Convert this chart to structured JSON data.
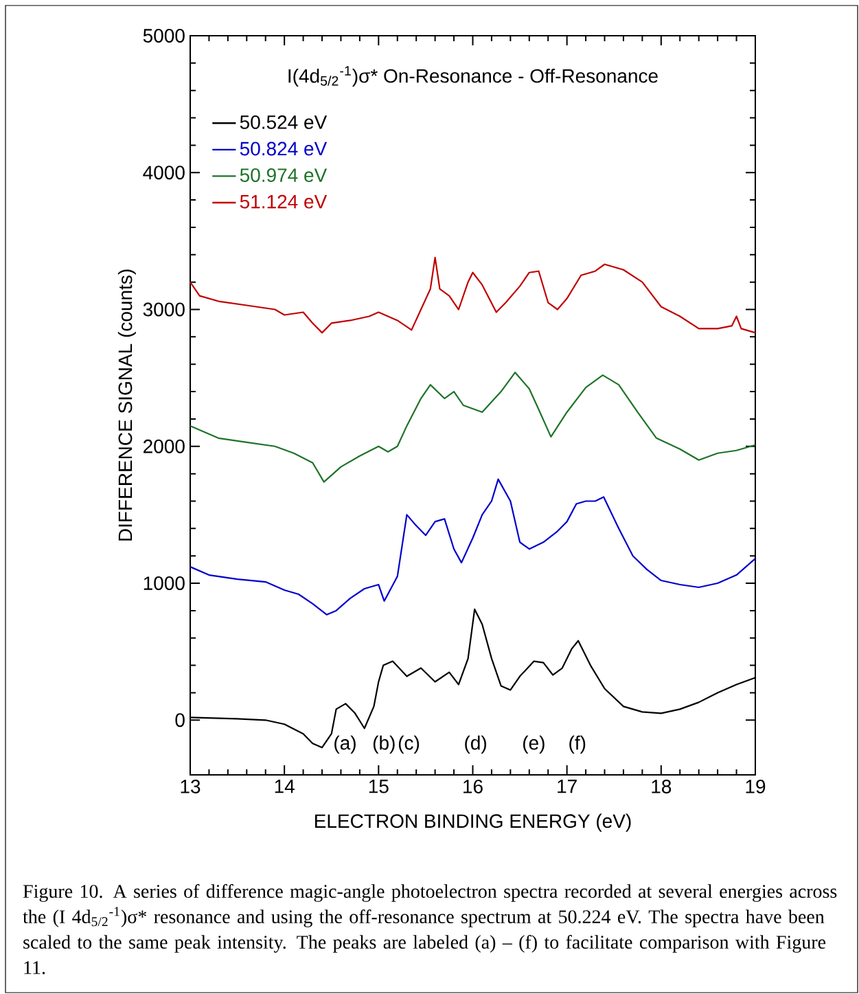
{
  "chart_data": {
    "type": "line",
    "title": "I(4d$_{5/2}$$^{-1}$)σ* On-Resonance - Off-Resonance",
    "xlabel": "ELECTRON BINDING ENERGY  (eV)",
    "ylabel": "DIFFERENCE SIGNAL  (counts)",
    "xlim": [
      13,
      19
    ],
    "xticks": [
      13,
      14,
      15,
      16,
      17,
      18,
      19
    ],
    "ylim": [
      -400,
      5000
    ],
    "yticks": [
      0,
      1000,
      2000,
      3000,
      4000,
      5000
    ],
    "legend": "top left",
    "marker": "none",
    "line_style": "solid",
    "series": [
      {
        "name": "50.524 eV",
        "color": "#000000",
        "x": [
          13.0,
          13.5,
          13.8,
          14.0,
          14.2,
          14.3,
          14.4,
          14.5,
          14.55,
          14.65,
          14.75,
          14.85,
          14.95,
          15.0,
          15.05,
          15.15,
          15.3,
          15.45,
          15.6,
          15.75,
          15.85,
          15.95,
          16.02,
          16.1,
          16.2,
          16.3,
          16.4,
          16.5,
          16.65,
          16.75,
          16.85,
          16.95,
          17.05,
          17.12,
          17.25,
          17.4,
          17.6,
          17.8,
          18.0,
          18.2,
          18.4,
          18.6,
          18.8,
          19.0
        ],
        "values": [
          20,
          10,
          0,
          -30,
          -100,
          -170,
          -200,
          -100,
          80,
          120,
          50,
          -60,
          100,
          280,
          400,
          430,
          320,
          380,
          280,
          350,
          260,
          450,
          810,
          700,
          450,
          250,
          220,
          320,
          430,
          420,
          330,
          380,
          520,
          580,
          400,
          230,
          100,
          60,
          50,
          80,
          130,
          200,
          260,
          310
        ]
      },
      {
        "name": "50.824 eV",
        "color": "#0000cc",
        "x": [
          13.0,
          13.2,
          13.5,
          13.8,
          14.0,
          14.15,
          14.3,
          14.45,
          14.55,
          14.7,
          14.85,
          15.0,
          15.06,
          15.2,
          15.3,
          15.4,
          15.5,
          15.6,
          15.7,
          15.8,
          15.88,
          16.0,
          16.1,
          16.2,
          16.27,
          16.4,
          16.5,
          16.6,
          16.75,
          16.9,
          17.0,
          17.1,
          17.2,
          17.3,
          17.39,
          17.55,
          17.7,
          17.85,
          18.0,
          18.2,
          18.4,
          18.6,
          18.8,
          19.0
        ],
        "values": [
          1120,
          1060,
          1030,
          1010,
          950,
          920,
          850,
          770,
          800,
          890,
          960,
          990,
          870,
          1050,
          1500,
          1420,
          1350,
          1450,
          1470,
          1250,
          1150,
          1330,
          1500,
          1600,
          1760,
          1600,
          1300,
          1250,
          1300,
          1380,
          1450,
          1580,
          1600,
          1600,
          1630,
          1400,
          1200,
          1100,
          1020,
          990,
          970,
          1000,
          1060,
          1180
        ]
      },
      {
        "name": "50.974 eV",
        "color": "#1e7328",
        "x": [
          13.0,
          13.3,
          13.6,
          13.9,
          14.1,
          14.3,
          14.42,
          14.6,
          14.8,
          15.0,
          15.1,
          15.2,
          15.3,
          15.45,
          15.55,
          15.7,
          15.8,
          15.9,
          16.1,
          16.3,
          16.45,
          16.6,
          16.7,
          16.83,
          17.0,
          17.2,
          17.38,
          17.55,
          17.75,
          17.95,
          18.2,
          18.4,
          18.6,
          18.8,
          19.0
        ],
        "values": [
          2150,
          2060,
          2030,
          2000,
          1950,
          1880,
          1740,
          1850,
          1930,
          2000,
          1960,
          2000,
          2150,
          2350,
          2450,
          2350,
          2400,
          2300,
          2250,
          2400,
          2540,
          2420,
          2270,
          2070,
          2250,
          2430,
          2520,
          2450,
          2250,
          2060,
          1980,
          1900,
          1950,
          1970,
          2010
        ]
      },
      {
        "name": "51.124 eV",
        "color": "#c00000",
        "x": [
          13.0,
          13.1,
          13.3,
          13.6,
          13.9,
          14.0,
          14.2,
          14.3,
          14.4,
          14.5,
          14.7,
          14.9,
          15.0,
          15.2,
          15.35,
          15.45,
          15.55,
          15.6,
          15.65,
          15.75,
          15.85,
          15.95,
          16.0,
          16.1,
          16.25,
          16.35,
          16.5,
          16.6,
          16.7,
          16.8,
          16.9,
          17.0,
          17.15,
          17.3,
          17.4,
          17.6,
          17.8,
          18.0,
          18.2,
          18.4,
          18.6,
          18.75,
          18.8,
          18.85,
          19.0
        ],
        "values": [
          3200,
          3100,
          3060,
          3030,
          3000,
          2960,
          2980,
          2900,
          2830,
          2900,
          2920,
          2950,
          2980,
          2920,
          2850,
          3000,
          3150,
          3380,
          3150,
          3100,
          3000,
          3200,
          3270,
          3180,
          2980,
          3050,
          3170,
          3270,
          3280,
          3050,
          3000,
          3080,
          3250,
          3280,
          3330,
          3290,
          3200,
          3020,
          2950,
          2860,
          2860,
          2880,
          2950,
          2860,
          2830
        ]
      }
    ],
    "annotations": [
      "(a)",
      "(b)",
      "(c)",
      "(d)",
      "(e)",
      "(f)",
      "Figure 10.  A series of difference magic-angle photoelectron spectra recorded at several energies across the (I 4d$_{5/2}$$^{-1}$)σ* resonance and using the off-resonance spectrum at 50.224 eV. The spectra have been scaled to the same peak intensity. The peaks are labeled (a) – (f) to facilitate comparison with Figure 11."
    ]
  }
}
